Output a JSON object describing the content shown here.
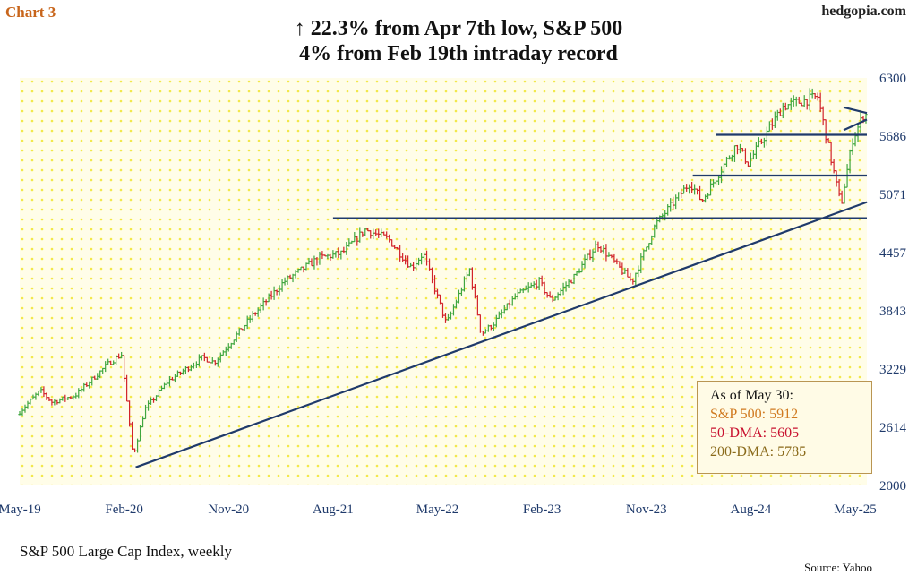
{
  "header": {
    "chart_label": "Chart 3",
    "brand": "hedgopia.com",
    "title_line1": "↑ 22.3% from Apr 7th low, S&P 500",
    "title_line2": "4% from Feb 19th intraday record"
  },
  "footer": {
    "subtitle": "S&P 500 Large Cap Index, weekly",
    "source": "Source: Yahoo"
  },
  "info_box": {
    "heading": "As of May 30:",
    "heading_color": "#111111",
    "lines": [
      {
        "text": "S&P 500: 5912",
        "color": "#d07a20"
      },
      {
        "text": "50-DMA: 5605",
        "color": "#c8102e"
      },
      {
        "text": "200-DMA: 5785",
        "color": "#8a6a1a"
      }
    ]
  },
  "colors": {
    "up": "#3fa63f",
    "down": "#d2232a",
    "trendline": "#1f3a6b",
    "background": "#fffde8",
    "dots": "#f2e84a"
  },
  "chart_data": {
    "type": "ohlc",
    "title": "↑ 22.3% from Apr 7th low, S&P 500 / 4% from Feb 19th intraday record",
    "xlabel": "",
    "ylabel": "",
    "x_ticks": [
      "May-19",
      "Feb-20",
      "Nov-20",
      "Aug-21",
      "May-22",
      "Feb-23",
      "Nov-23",
      "Aug-24",
      "May-25"
    ],
    "x_range": [
      "2019-05",
      "2025-06"
    ],
    "y_ticks": [
      2000,
      2614,
      3229,
      3843,
      4457,
      5071,
      5686,
      6300
    ],
    "ylim": [
      2000,
      6300
    ],
    "grid": "dotted",
    "anchors": [
      [
        "2019-05",
        2750
      ],
      [
        "2019-07",
        3000
      ],
      [
        "2019-08",
        2880
      ],
      [
        "2019-10",
        2950
      ],
      [
        "2020-01",
        3300
      ],
      [
        "2020-02",
        3380
      ],
      [
        "2020-03",
        2300
      ],
      [
        "2020-04",
        2800
      ],
      [
        "2020-06",
        3100
      ],
      [
        "2020-09",
        3350
      ],
      [
        "2020-10",
        3300
      ],
      [
        "2021-01",
        3750
      ],
      [
        "2021-04",
        4150
      ],
      [
        "2021-07",
        4400
      ],
      [
        "2021-09",
        4450
      ],
      [
        "2021-11",
        4700
      ],
      [
        "2022-01",
        4600
      ],
      [
        "2022-03",
        4300
      ],
      [
        "2022-04",
        4450
      ],
      [
        "2022-06",
        3700
      ],
      [
        "2022-08",
        4280
      ],
      [
        "2022-09",
        3600
      ],
      [
        "2022-10",
        3700
      ],
      [
        "2022-12",
        4000
      ],
      [
        "2023-02",
        4150
      ],
      [
        "2023-03",
        3950
      ],
      [
        "2023-05",
        4200
      ],
      [
        "2023-07",
        4550
      ],
      [
        "2023-10",
        4150
      ],
      [
        "2023-12",
        4750
      ],
      [
        "2024-03",
        5200
      ],
      [
        "2024-04",
        5000
      ],
      [
        "2024-07",
        5600
      ],
      [
        "2024-08",
        5400
      ],
      [
        "2024-11",
        6000
      ],
      [
        "2025-02",
        6100
      ],
      [
        "2025-04",
        4950
      ],
      [
        "2025-05",
        5650
      ],
      [
        "2025-05-30",
        5912
      ]
    ],
    "annotations": {
      "horizontal_lines": [
        {
          "value": 4820,
          "from": "2021-08",
          "to": "2025-06"
        },
        {
          "value": 5270,
          "from": "2024-03",
          "to": "2025-06"
        },
        {
          "value": 5700,
          "from": "2024-05",
          "to": "2025-06"
        }
      ],
      "trendline": {
        "from": [
          "2020-03",
          2192
        ],
        "to": [
          "2025-06",
          4990
        ]
      },
      "wedge": [
        {
          "from": [
            "2025-04",
            5990
          ],
          "to": [
            "2025-06",
            5930
          ]
        },
        {
          "from": [
            "2025-04",
            5750
          ],
          "to": [
            "2025-06",
            5860
          ]
        }
      ]
    }
  }
}
